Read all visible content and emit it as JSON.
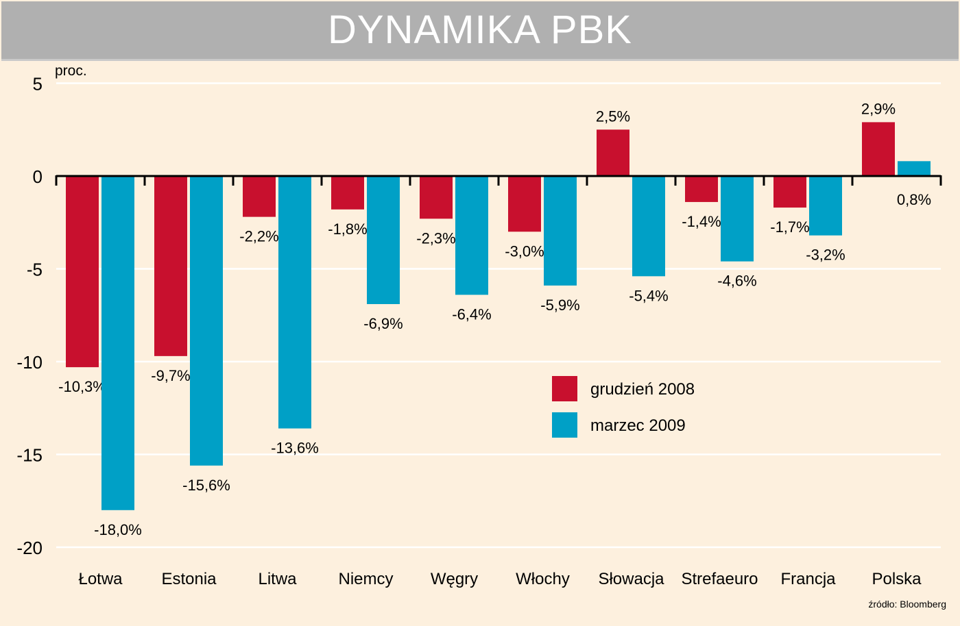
{
  "header": {
    "title": "DYNAMIKA PBK"
  },
  "source": "źródło: Bloomberg",
  "colors": {
    "series1": "#c8102e",
    "series2": "#00a0c6",
    "background": "#fdf0de",
    "header": "#b0b0b0",
    "gridline": "#ffffff"
  },
  "chart_data": {
    "type": "bar",
    "title": "DYNAMIKA PBK",
    "ylabel": "proc.",
    "ylim": [
      -20,
      5
    ],
    "yticks": [
      "5",
      "0",
      "-5",
      "-10",
      "-15",
      "-20"
    ],
    "ytick_values": [
      5,
      0,
      -5,
      -10,
      -15,
      -20
    ],
    "grid": true,
    "legend_position": "center-right",
    "categories": [
      "Łotwa",
      "Estonia",
      "Litwa",
      "Niemcy",
      "Węgry",
      "Włochy",
      "Słowacja",
      "Strefaeuro",
      "Francja",
      "Polska"
    ],
    "series": [
      {
        "name": "grudzień 2008",
        "color": "#c8102e",
        "values": [
          -10.3,
          -9.7,
          -2.2,
          -1.8,
          -2.3,
          -3.0,
          2.5,
          -1.4,
          -1.7,
          2.9
        ],
        "labels": [
          "-10,3%",
          "-9,7%",
          "-2,2%",
          "-1,8%",
          "-2,3%",
          "-3,0%",
          "2,5%",
          "-1,4%",
          "-1,7%",
          "2,9%"
        ]
      },
      {
        "name": "marzec 2009",
        "color": "#00a0c6",
        "values": [
          -18.0,
          -15.6,
          -13.6,
          -6.9,
          -6.4,
          -5.9,
          -5.4,
          -4.6,
          -3.2,
          0.8
        ],
        "labels": [
          "-18,0%",
          "-15,6%",
          "-13,6%",
          "-6,9%",
          "-6,4%",
          "-5,9%",
          "-5,4%",
          "-4,6%",
          "-3,2%",
          "0,8%"
        ]
      }
    ]
  }
}
